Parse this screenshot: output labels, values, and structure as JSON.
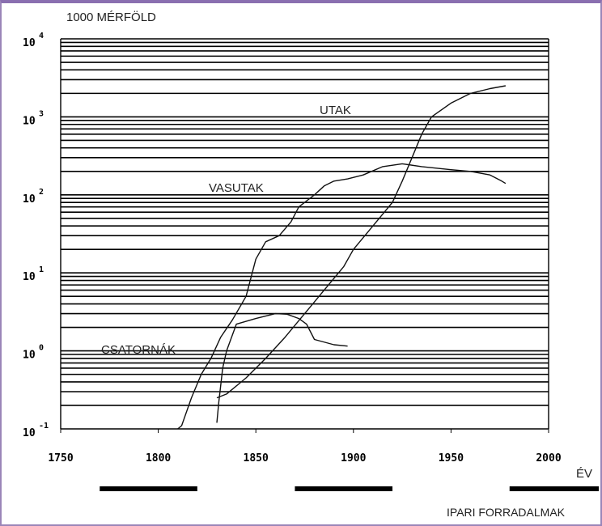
{
  "chart_data": {
    "type": "line",
    "title": "",
    "ylabel": "1000 MÉRFÖLD",
    "xlabel": "ÉV",
    "yscale": "log",
    "ylim": [
      0.1,
      10000
    ],
    "xlim": [
      1750,
      2000
    ],
    "x_ticks": [
      "1750",
      "1800",
      "1850",
      "1900",
      "1950",
      "2000"
    ],
    "y_ticks": [
      {
        "base": "10",
        "exp": "-1"
      },
      {
        "base": "10",
        "exp": "0"
      },
      {
        "base": "10",
        "exp": "1"
      },
      {
        "base": "10",
        "exp": "2"
      },
      {
        "base": "10",
        "exp": "3"
      },
      {
        "base": "10",
        "exp": "4"
      }
    ],
    "grid": true,
    "series": [
      {
        "name": "UTAK",
        "x": [
          1830,
          1835,
          1845,
          1855,
          1865,
          1875,
          1885,
          1895,
          1900,
          1910,
          1920,
          1925,
          1930,
          1935,
          1940,
          1950,
          1960,
          1970,
          1978
        ],
        "y": [
          0.25,
          0.28,
          0.45,
          0.8,
          1.5,
          3,
          6,
          12,
          20,
          40,
          80,
          150,
          300,
          600,
          1000,
          1500,
          2000,
          2300,
          2500
        ]
      },
      {
        "name": "VASUTAK",
        "x": [
          1810,
          1812,
          1817,
          1822,
          1827,
          1832,
          1838,
          1845,
          1850,
          1855,
          1862,
          1868,
          1872,
          1880,
          1885,
          1890,
          1897,
          1905,
          1915,
          1925,
          1935,
          1950,
          1960,
          1970,
          1976,
          1978
        ],
        "y": [
          0.1,
          0.11,
          0.25,
          0.5,
          0.8,
          1.5,
          2.5,
          5,
          15,
          25,
          30,
          45,
          70,
          100,
          130,
          150,
          160,
          180,
          230,
          250,
          230,
          210,
          200,
          180,
          150,
          140
        ]
      },
      {
        "name": "CSATORNÁK",
        "x": [
          1830,
          1831,
          1833,
          1835,
          1840,
          1850,
          1860,
          1866,
          1872,
          1876,
          1880,
          1890,
          1897
        ],
        "y": [
          0.12,
          0.22,
          0.6,
          1.0,
          2.2,
          2.6,
          3.0,
          2.95,
          2.6,
          2.2,
          1.4,
          1.2,
          1.15
        ]
      }
    ],
    "annotations": [
      "UTAK",
      "VASUTAK",
      "CSATORNÁK"
    ],
    "legend": "none"
  },
  "footer": {
    "caption": "IPARI FORRADALMAK",
    "periods": [
      {
        "start": 1770,
        "end": 1820
      },
      {
        "start": 1870,
        "end": 1920
      },
      {
        "start": 1980,
        "end": 2029
      }
    ]
  },
  "colors": {
    "line": "#111111",
    "grid": "#000000",
    "frame": "#8a6fb0"
  }
}
